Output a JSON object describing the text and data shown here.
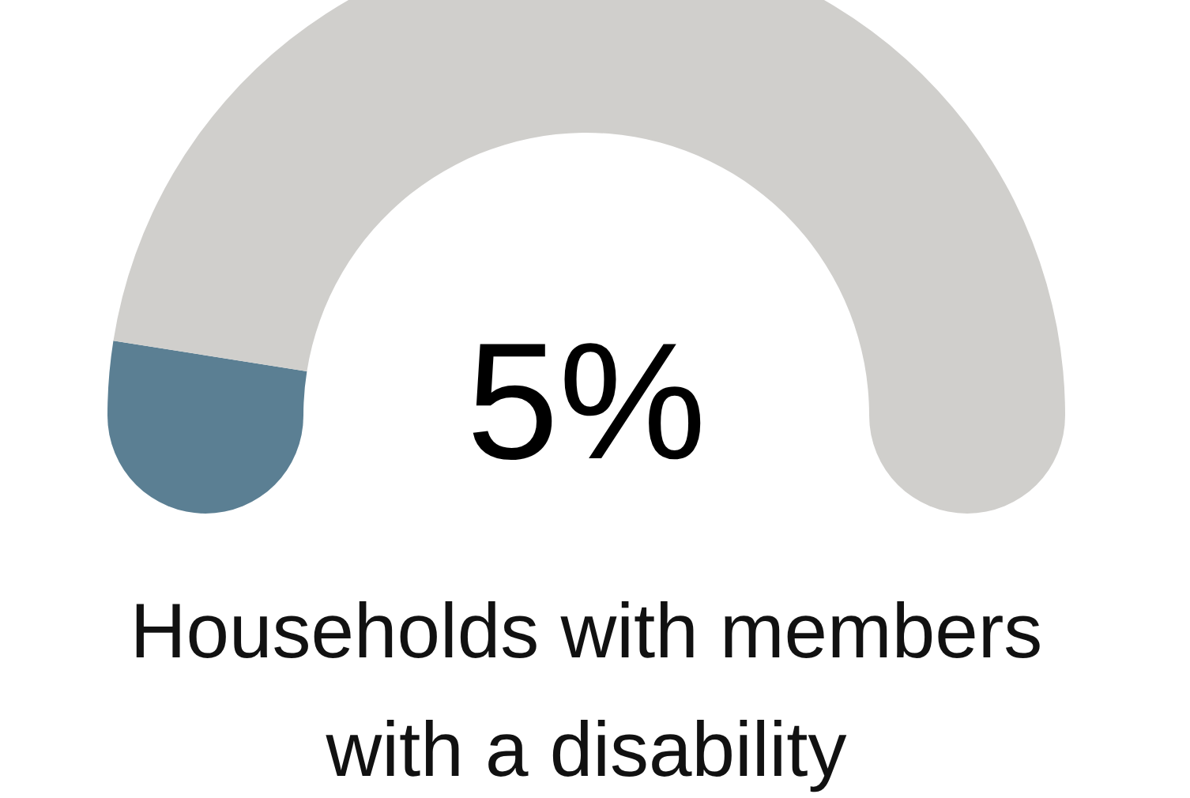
{
  "chart_data": {
    "type": "donut",
    "title": "Households with members with a disability",
    "categories": [
      null,
      null
    ],
    "values": [
      5,
      95
    ],
    "colors": [
      "#5b7f93",
      "#d0cfcc"
    ],
    "annotations": [
      "5%"
    ]
  }
}
